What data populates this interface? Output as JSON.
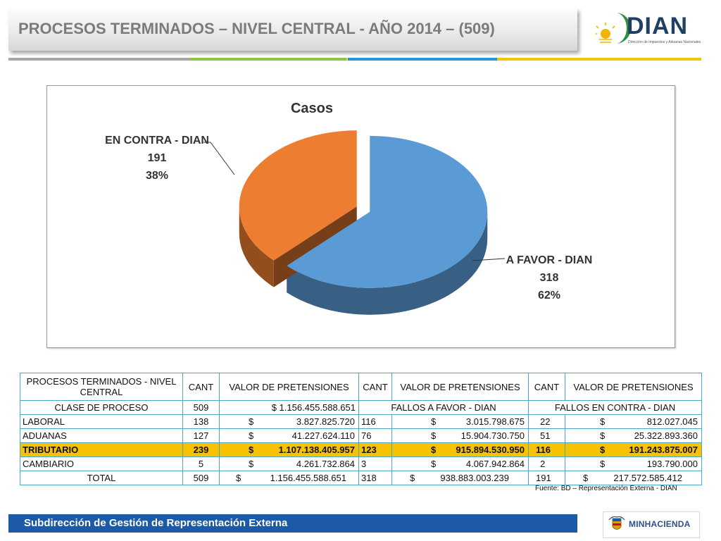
{
  "header": {
    "title": "PROCESOS TERMINADOS  – NIVEL CENTRAL - AÑO 2014 – (509)",
    "logo_text": "DIAN",
    "logo_subtext": "Dirección de Impuestos y Aduanas Nacionales"
  },
  "chart_data": {
    "type": "pie",
    "title": "Casos",
    "slices": [
      {
        "label": "A FAVOR - DIAN",
        "value": 318,
        "percent": "62%",
        "value_text": "318",
        "color": "#5b9bd5"
      },
      {
        "label": "EN CONTRA - DIAN",
        "value": 191,
        "percent": "38%",
        "value_text": "191",
        "color": "#ed7d31"
      }
    ],
    "style": "3d-exploded"
  },
  "table": {
    "header": [
      "PROCESOS TERMINADOS  - NIVEL CENTRAL",
      "CANT",
      "VALOR DE PRETENSIONES",
      "CANT",
      "VALOR DE PRETENSIONES",
      "CANT",
      "VALOR DE PRETENSIONES"
    ],
    "subheader": {
      "clase": "CLASE DE PROCESO",
      "cant": "509",
      "valor": "$ 1.156.455.588.651",
      "favor": "FALLOS A FAVOR -  DIAN",
      "contra": "FALLOS EN CONTRA - DIAN"
    },
    "rows": [
      {
        "name": "LABORAL",
        "cant": "138",
        "valor": "3.827.825.720",
        "cant_favor": "116",
        "valor_favor": "3.015.798.675",
        "cant_contra": "22",
        "valor_contra": "812.027.045"
      },
      {
        "name": "ADUANAS",
        "cant": "127",
        "valor": "41.227.624.110",
        "cant_favor": "76",
        "valor_favor": "15.904.730.750",
        "cant_contra": "51",
        "valor_contra": "25.322.893.360"
      },
      {
        "name": "TRIBUTARIO",
        "cant": "239",
        "valor": "1.107.138.405.957",
        "cant_favor": "123",
        "valor_favor": "915.894.530.950",
        "cant_contra": "116",
        "valor_contra": "191.243.875.007"
      },
      {
        "name": "CAMBIARIO",
        "cant": "5",
        "valor": "4.261.732.864",
        "cant_favor": "3",
        "valor_favor": "4.067.942.864",
        "cant_contra": "2",
        "valor_contra": "193.790.000"
      }
    ],
    "total": {
      "name": "TOTAL",
      "cant": "509",
      "valor": "1.156.455.588.651",
      "cant_favor": "318",
      "valor_favor": "938.883.003.239",
      "cant_contra": "191",
      "valor_contra": "217.572.585.412"
    },
    "currency": "$",
    "highlight_color": "#f7c200"
  },
  "source": "Fuente: BD – Representación Externa - DIAN",
  "footer": {
    "text": "Subdirección de Gestión de Representación Externa",
    "ministry": "MINHACIENDA"
  },
  "colors": {
    "footer_bar": "#1d5aa6",
    "table_border": "#48a6c8"
  }
}
